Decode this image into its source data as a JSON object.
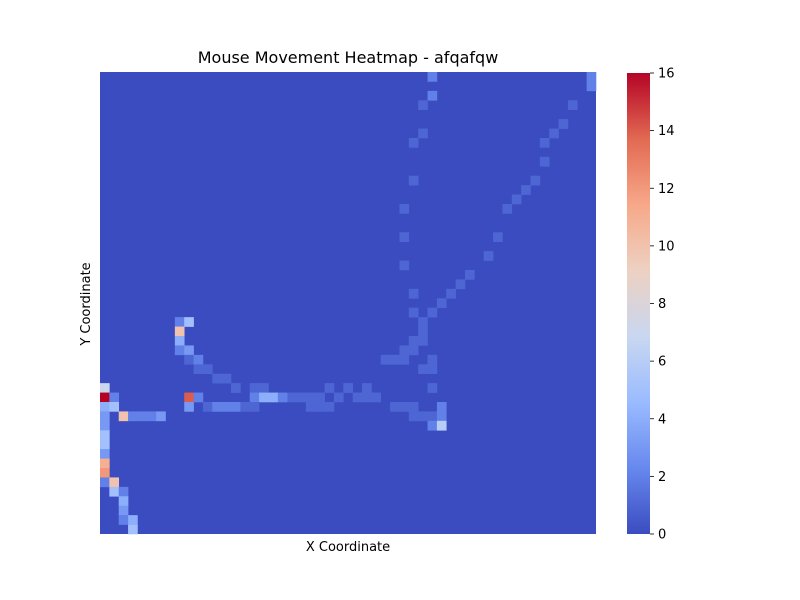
{
  "chart_data": {
    "type": "heatmap",
    "title": "Mouse Movement Heatmap - afqafqw",
    "xlabel": "X Coordinate",
    "ylabel": "Y Coordinate",
    "x_ticks_visible": false,
    "y_ticks_visible": false,
    "grid": false,
    "colormap": "coolwarm",
    "colormap_stops": [
      "#3b4cc0",
      "#6788ee",
      "#9abbff",
      "#c9d7f0",
      "#edd1c2",
      "#f7a889",
      "#e26952",
      "#b40426"
    ],
    "colorbar": {
      "min": 0,
      "max": 16,
      "ticks": [
        "0",
        "2",
        "4",
        "6",
        "8",
        "10",
        "12",
        "14",
        "16"
      ],
      "placement": "right"
    },
    "grid_size": {
      "cols": 53,
      "rows": 49
    },
    "background_value": 0,
    "cells": [
      [
        35,
        0,
        2
      ],
      [
        52,
        0,
        2
      ],
      [
        52,
        1,
        2
      ],
      [
        35,
        2,
        2
      ],
      [
        34,
        3,
        1
      ],
      [
        50,
        3,
        1
      ],
      [
        49,
        5,
        1
      ],
      [
        34,
        6,
        1
      ],
      [
        48,
        6,
        1
      ],
      [
        33,
        7,
        1
      ],
      [
        47,
        7,
        1
      ],
      [
        47,
        9,
        1
      ],
      [
        33,
        11,
        1
      ],
      [
        46,
        11,
        1
      ],
      [
        45,
        12,
        1
      ],
      [
        44,
        13,
        1
      ],
      [
        32,
        14,
        1
      ],
      [
        43,
        14,
        1
      ],
      [
        32,
        17,
        1
      ],
      [
        42,
        17,
        1
      ],
      [
        41,
        19,
        1
      ],
      [
        32,
        20,
        1
      ],
      [
        39,
        21,
        1
      ],
      [
        38,
        22,
        1
      ],
      [
        33,
        23,
        1
      ],
      [
        37,
        23,
        1
      ],
      [
        36,
        24,
        1
      ],
      [
        33,
        25,
        1
      ],
      [
        35,
        25,
        1
      ],
      [
        34,
        26,
        1
      ],
      [
        34,
        27,
        1
      ],
      [
        33,
        28,
        1
      ],
      [
        34,
        28,
        1
      ],
      [
        8,
        26,
        2
      ],
      [
        9,
        26,
        5
      ],
      [
        8,
        27,
        10
      ],
      [
        8,
        28,
        4
      ],
      [
        8,
        29,
        2
      ],
      [
        9,
        29,
        3
      ],
      [
        9,
        30,
        1
      ],
      [
        10,
        30,
        2
      ],
      [
        10,
        31,
        1
      ],
      [
        11,
        31,
        1
      ],
      [
        12,
        32,
        1
      ],
      [
        13,
        32,
        1
      ],
      [
        14,
        33,
        1
      ],
      [
        16,
        33,
        1
      ],
      [
        17,
        33,
        1
      ],
      [
        33,
        29,
        1
      ],
      [
        32,
        29,
        1
      ],
      [
        35,
        30,
        1
      ],
      [
        30,
        30,
        1
      ],
      [
        31,
        30,
        1
      ],
      [
        32,
        30,
        1
      ],
      [
        34,
        31,
        1
      ],
      [
        35,
        31,
        1
      ],
      [
        24,
        33,
        1
      ],
      [
        26,
        33,
        1
      ],
      [
        28,
        33,
        1
      ],
      [
        27,
        34,
        1
      ],
      [
        28,
        34,
        1
      ],
      [
        29,
        34,
        1
      ],
      [
        35,
        33,
        1
      ],
      [
        20,
        34,
        1
      ],
      [
        21,
        34,
        1
      ],
      [
        22,
        34,
        1
      ],
      [
        23,
        34,
        1
      ],
      [
        25,
        34,
        1
      ],
      [
        0,
        33,
        7
      ],
      [
        0,
        34,
        16
      ],
      [
        1,
        34,
        2
      ],
      [
        9,
        34,
        14
      ],
      [
        10,
        34,
        2
      ],
      [
        16,
        34,
        2
      ],
      [
        17,
        34,
        4
      ],
      [
        18,
        34,
        4
      ],
      [
        19,
        34,
        2
      ],
      [
        22,
        35,
        1
      ],
      [
        23,
        35,
        1
      ],
      [
        24,
        35,
        1
      ],
      [
        9,
        35,
        3
      ],
      [
        11,
        35,
        1
      ],
      [
        12,
        35,
        2
      ],
      [
        13,
        35,
        2
      ],
      [
        14,
        35,
        2
      ],
      [
        15,
        35,
        1
      ],
      [
        16,
        35,
        1
      ],
      [
        0,
        35,
        4
      ],
      [
        1,
        35,
        5
      ],
      [
        36,
        35,
        2
      ],
      [
        31,
        35,
        1
      ],
      [
        32,
        35,
        1
      ],
      [
        33,
        35,
        1
      ],
      [
        2,
        36,
        10
      ],
      [
        3,
        36,
        2
      ],
      [
        4,
        36,
        2
      ],
      [
        5,
        36,
        2
      ],
      [
        6,
        36,
        3
      ],
      [
        33,
        36,
        1
      ],
      [
        34,
        36,
        1
      ],
      [
        35,
        36,
        1
      ],
      [
        36,
        36,
        2
      ],
      [
        0,
        36,
        3
      ],
      [
        35,
        37,
        2
      ],
      [
        36,
        37,
        6
      ],
      [
        0,
        37,
        3
      ],
      [
        0,
        38,
        5
      ],
      [
        0,
        39,
        5
      ],
      [
        0,
        40,
        3
      ],
      [
        0,
        41,
        11
      ],
      [
        0,
        42,
        12
      ],
      [
        0,
        43,
        2
      ],
      [
        1,
        43,
        10
      ],
      [
        1,
        44,
        5
      ],
      [
        2,
        44,
        2
      ],
      [
        2,
        45,
        4
      ],
      [
        2,
        46,
        3
      ],
      [
        2,
        47,
        2
      ],
      [
        3,
        48,
        5
      ],
      [
        3,
        47,
        4
      ]
    ]
  }
}
